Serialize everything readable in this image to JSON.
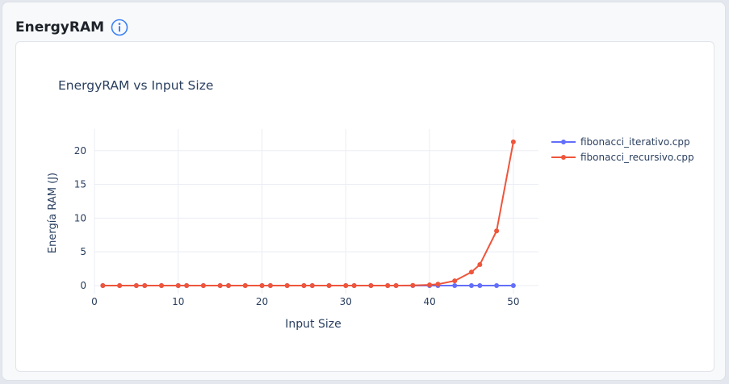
{
  "card": {
    "title": "EnergyRAM",
    "info_icon": "info-circle-icon"
  },
  "colors": {
    "series_iterativo": "#636efa",
    "series_recursivo": "#ef553b",
    "grid": "#ebedf5",
    "info_icon": "#3b82f6"
  },
  "chart_data": {
    "type": "line",
    "title": "EnergyRAM vs Input Size",
    "xlabel": "Input Size",
    "ylabel": "Energía RAM (J)",
    "xlim": [
      0,
      53
    ],
    "ylim": [
      -1.2,
      23.2
    ],
    "xticks": [
      0,
      10,
      20,
      30,
      40,
      50
    ],
    "yticks": [
      0,
      5,
      10,
      15,
      20
    ],
    "grid": true,
    "legend_position": "top-right",
    "series": [
      {
        "name": "fibonacci_iterativo.cpp",
        "x": [
          1,
          3,
          5,
          6,
          8,
          10,
          11,
          13,
          15,
          16,
          18,
          20,
          21,
          23,
          25,
          26,
          28,
          30,
          31,
          33,
          35,
          36,
          38,
          40,
          41,
          43,
          45,
          46,
          48,
          50
        ],
        "y": [
          0,
          0,
          0,
          0,
          0,
          0,
          0,
          0,
          0,
          0,
          0,
          0,
          0,
          0,
          0,
          0,
          0,
          0,
          0,
          0,
          0,
          0,
          0,
          0,
          0,
          0,
          0,
          0,
          0,
          0
        ]
      },
      {
        "name": "fibonacci_recursivo.cpp",
        "x": [
          1,
          3,
          5,
          6,
          8,
          10,
          11,
          13,
          15,
          16,
          18,
          20,
          21,
          23,
          25,
          26,
          28,
          30,
          31,
          33,
          35,
          36,
          38,
          40,
          41,
          43,
          45,
          46,
          48,
          50
        ],
        "y": [
          0,
          0,
          0,
          0,
          0,
          0,
          0,
          0,
          0,
          0,
          0,
          0,
          0,
          0,
          0,
          0,
          0,
          0,
          0,
          0,
          0,
          0,
          0.02,
          0.1,
          0.2,
          0.7,
          2.0,
          3.1,
          8.1,
          21.3
        ]
      }
    ]
  }
}
